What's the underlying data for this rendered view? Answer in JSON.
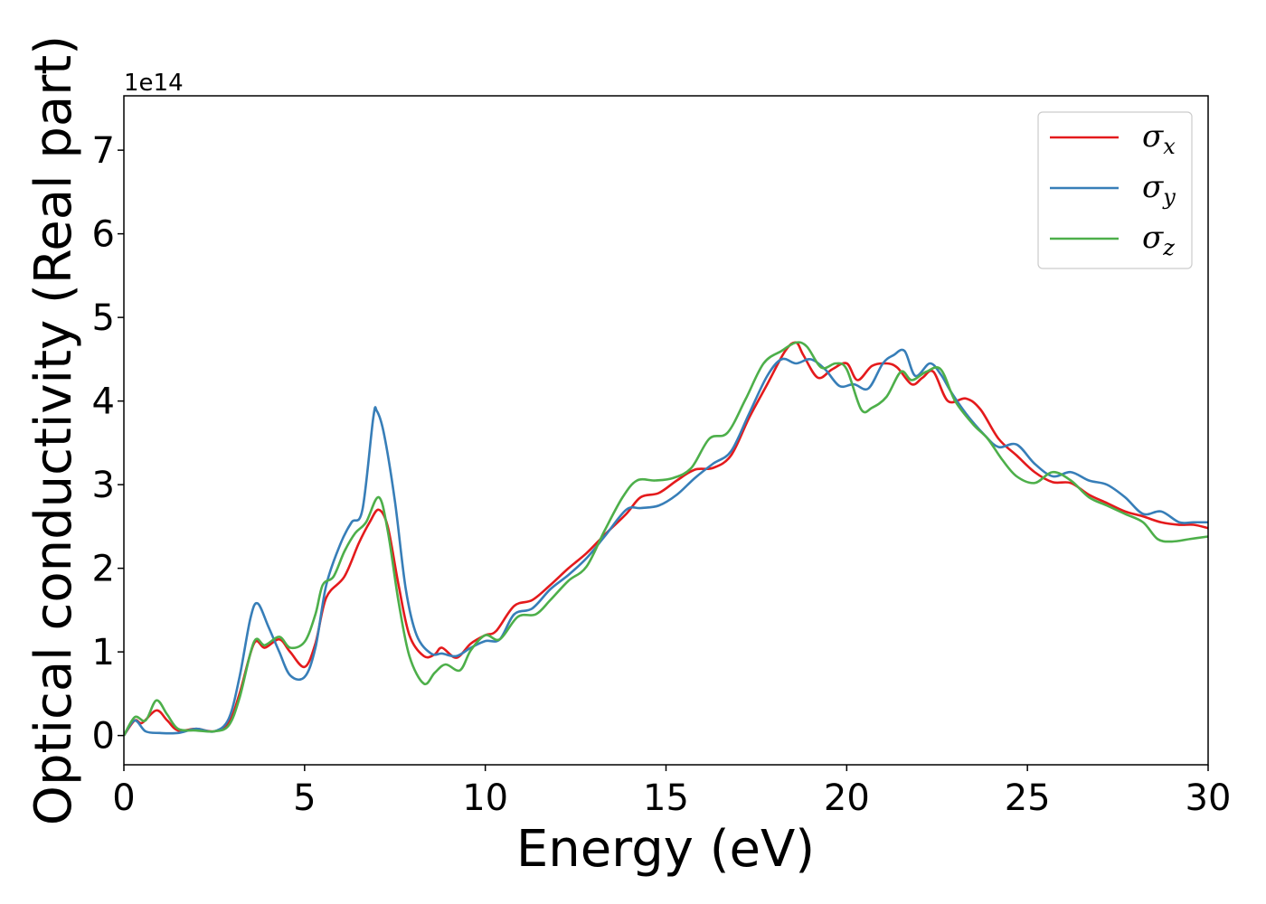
{
  "chart_data": {
    "type": "line",
    "xlabel": "Energy (eV)",
    "ylabel": "Optical conductivity (Real part)",
    "y_offset_label": "1e14",
    "xlim": [
      0,
      30
    ],
    "ylim": [
      -0.35,
      7.65
    ],
    "x_ticks": [
      0,
      5,
      10,
      15,
      20,
      25,
      30
    ],
    "x_tick_labels": [
      "0",
      "5",
      "10",
      "15",
      "20",
      "25",
      "30"
    ],
    "y_ticks": [
      0,
      1,
      2,
      3,
      4,
      5,
      6,
      7
    ],
    "y_tick_labels": [
      "0",
      "1",
      "2",
      "3",
      "4",
      "5",
      "6",
      "7"
    ],
    "grid": false,
    "legend_position": "top-right",
    "series": [
      {
        "name": "σx",
        "symbol": "σ",
        "subscript": "x",
        "color": "#e41a1c",
        "points": [
          [
            0,
            0
          ],
          [
            0.3,
            0.18
          ],
          [
            0.5,
            0.15
          ],
          [
            0.9,
            0.3
          ],
          [
            1.2,
            0.18
          ],
          [
            1.5,
            0.06
          ],
          [
            2,
            0.08
          ],
          [
            2.5,
            0.05
          ],
          [
            2.9,
            0.15
          ],
          [
            3.2,
            0.5
          ],
          [
            3.6,
            1.1
          ],
          [
            3.9,
            1.05
          ],
          [
            4.3,
            1.15
          ],
          [
            4.6,
            1.0
          ],
          [
            5,
            0.82
          ],
          [
            5.3,
            1.1
          ],
          [
            5.6,
            1.65
          ],
          [
            6.1,
            1.9
          ],
          [
            6.5,
            2.3
          ],
          [
            6.8,
            2.55
          ],
          [
            7.05,
            2.7
          ],
          [
            7.3,
            2.5
          ],
          [
            7.6,
            1.8
          ],
          [
            7.9,
            1.2
          ],
          [
            8.3,
            0.95
          ],
          [
            8.6,
            0.97
          ],
          [
            8.8,
            1.05
          ],
          [
            9.2,
            0.93
          ],
          [
            9.6,
            1.1
          ],
          [
            10,
            1.2
          ],
          [
            10.3,
            1.25
          ],
          [
            10.8,
            1.55
          ],
          [
            11.3,
            1.62
          ],
          [
            11.8,
            1.8
          ],
          [
            12.3,
            2.0
          ],
          [
            12.8,
            2.18
          ],
          [
            13.3,
            2.4
          ],
          [
            13.9,
            2.65
          ],
          [
            14.3,
            2.85
          ],
          [
            14.8,
            2.9
          ],
          [
            15.3,
            3.05
          ],
          [
            15.8,
            3.18
          ],
          [
            16.3,
            3.2
          ],
          [
            16.8,
            3.35
          ],
          [
            17.3,
            3.8
          ],
          [
            17.8,
            4.2
          ],
          [
            18.3,
            4.6
          ],
          [
            18.6,
            4.7
          ],
          [
            18.8,
            4.55
          ],
          [
            19.2,
            4.28
          ],
          [
            19.6,
            4.38
          ],
          [
            20,
            4.45
          ],
          [
            20.3,
            4.25
          ],
          [
            20.7,
            4.42
          ],
          [
            21.1,
            4.45
          ],
          [
            21.4,
            4.4
          ],
          [
            21.8,
            4.2
          ],
          [
            22.1,
            4.28
          ],
          [
            22.4,
            4.35
          ],
          [
            22.8,
            4.0
          ],
          [
            23.3,
            4.03
          ],
          [
            23.7,
            3.9
          ],
          [
            24.2,
            3.55
          ],
          [
            24.7,
            3.35
          ],
          [
            25.2,
            3.15
          ],
          [
            25.7,
            3.03
          ],
          [
            26.2,
            3.02
          ],
          [
            26.7,
            2.88
          ],
          [
            27.2,
            2.78
          ],
          [
            27.7,
            2.68
          ],
          [
            28.2,
            2.62
          ],
          [
            28.7,
            2.55
          ],
          [
            29.2,
            2.52
          ],
          [
            29.6,
            2.52
          ],
          [
            30,
            2.48
          ]
        ]
      },
      {
        "name": "σy",
        "symbol": "σ",
        "subscript": "y",
        "color": "#377eb8",
        "points": [
          [
            0,
            0
          ],
          [
            0.3,
            0.18
          ],
          [
            0.6,
            0.05
          ],
          [
            1.0,
            0.03
          ],
          [
            1.5,
            0.03
          ],
          [
            2,
            0.08
          ],
          [
            2.5,
            0.05
          ],
          [
            2.9,
            0.2
          ],
          [
            3.2,
            0.7
          ],
          [
            3.5,
            1.4
          ],
          [
            3.7,
            1.58
          ],
          [
            4.0,
            1.3
          ],
          [
            4.3,
            1.0
          ],
          [
            4.6,
            0.72
          ],
          [
            5,
            0.7
          ],
          [
            5.3,
            1.05
          ],
          [
            5.6,
            1.8
          ],
          [
            6.0,
            2.3
          ],
          [
            6.3,
            2.55
          ],
          [
            6.6,
            2.7
          ],
          [
            6.9,
            3.8
          ],
          [
            7.0,
            3.88
          ],
          [
            7.2,
            3.6
          ],
          [
            7.5,
            2.8
          ],
          [
            7.8,
            1.75
          ],
          [
            8.1,
            1.2
          ],
          [
            8.5,
            0.98
          ],
          [
            8.8,
            0.98
          ],
          [
            9.2,
            0.95
          ],
          [
            9.6,
            1.05
          ],
          [
            10,
            1.13
          ],
          [
            10.4,
            1.15
          ],
          [
            10.8,
            1.45
          ],
          [
            11.3,
            1.52
          ],
          [
            11.8,
            1.75
          ],
          [
            12.3,
            1.92
          ],
          [
            12.8,
            2.12
          ],
          [
            13.3,
            2.38
          ],
          [
            13.9,
            2.7
          ],
          [
            14.3,
            2.72
          ],
          [
            14.8,
            2.75
          ],
          [
            15.3,
            2.88
          ],
          [
            15.8,
            3.08
          ],
          [
            16.3,
            3.25
          ],
          [
            16.8,
            3.4
          ],
          [
            17.3,
            3.85
          ],
          [
            17.8,
            4.3
          ],
          [
            18.2,
            4.5
          ],
          [
            18.6,
            4.45
          ],
          [
            19.0,
            4.5
          ],
          [
            19.4,
            4.38
          ],
          [
            19.8,
            4.18
          ],
          [
            20.2,
            4.2
          ],
          [
            20.6,
            4.15
          ],
          [
            21.0,
            4.45
          ],
          [
            21.3,
            4.55
          ],
          [
            21.6,
            4.6
          ],
          [
            21.9,
            4.3
          ],
          [
            22.3,
            4.45
          ],
          [
            22.6,
            4.32
          ],
          [
            22.9,
            4.1
          ],
          [
            23.3,
            3.85
          ],
          [
            23.8,
            3.6
          ],
          [
            24.2,
            3.45
          ],
          [
            24.7,
            3.48
          ],
          [
            25.2,
            3.25
          ],
          [
            25.7,
            3.1
          ],
          [
            26.2,
            3.15
          ],
          [
            26.7,
            3.05
          ],
          [
            27.2,
            3.0
          ],
          [
            27.7,
            2.85
          ],
          [
            28.2,
            2.65
          ],
          [
            28.7,
            2.68
          ],
          [
            29.2,
            2.55
          ],
          [
            29.6,
            2.55
          ],
          [
            30,
            2.55
          ]
        ]
      },
      {
        "name": "σz",
        "symbol": "σ",
        "subscript": "z",
        "color": "#4daf4a",
        "points": [
          [
            0,
            0
          ],
          [
            0.3,
            0.22
          ],
          [
            0.6,
            0.18
          ],
          [
            0.9,
            0.42
          ],
          [
            1.2,
            0.25
          ],
          [
            1.5,
            0.08
          ],
          [
            2,
            0.06
          ],
          [
            2.5,
            0.05
          ],
          [
            2.9,
            0.12
          ],
          [
            3.2,
            0.45
          ],
          [
            3.6,
            1.12
          ],
          [
            3.9,
            1.08
          ],
          [
            4.3,
            1.18
          ],
          [
            4.6,
            1.05
          ],
          [
            5,
            1.12
          ],
          [
            5.3,
            1.45
          ],
          [
            5.5,
            1.8
          ],
          [
            5.8,
            1.9
          ],
          [
            6.1,
            2.2
          ],
          [
            6.4,
            2.42
          ],
          [
            6.7,
            2.55
          ],
          [
            7.05,
            2.85
          ],
          [
            7.3,
            2.45
          ],
          [
            7.6,
            1.6
          ],
          [
            7.9,
            0.95
          ],
          [
            8.3,
            0.62
          ],
          [
            8.6,
            0.75
          ],
          [
            8.9,
            0.85
          ],
          [
            9.3,
            0.78
          ],
          [
            9.6,
            1.02
          ],
          [
            10,
            1.2
          ],
          [
            10.4,
            1.15
          ],
          [
            10.9,
            1.42
          ],
          [
            11.4,
            1.45
          ],
          [
            11.8,
            1.62
          ],
          [
            12.3,
            1.85
          ],
          [
            12.8,
            2.02
          ],
          [
            13.3,
            2.45
          ],
          [
            13.8,
            2.85
          ],
          [
            14.2,
            3.05
          ],
          [
            14.7,
            3.05
          ],
          [
            15.2,
            3.08
          ],
          [
            15.7,
            3.2
          ],
          [
            16.2,
            3.55
          ],
          [
            16.7,
            3.62
          ],
          [
            17.2,
            4.02
          ],
          [
            17.7,
            4.45
          ],
          [
            18.2,
            4.6
          ],
          [
            18.6,
            4.7
          ],
          [
            18.9,
            4.65
          ],
          [
            19.3,
            4.4
          ],
          [
            19.7,
            4.45
          ],
          [
            20.0,
            4.38
          ],
          [
            20.4,
            3.9
          ],
          [
            20.7,
            3.92
          ],
          [
            21.1,
            4.05
          ],
          [
            21.5,
            4.35
          ],
          [
            21.8,
            4.25
          ],
          [
            22.2,
            4.35
          ],
          [
            22.6,
            4.38
          ],
          [
            23.0,
            4.0
          ],
          [
            23.5,
            3.72
          ],
          [
            23.9,
            3.55
          ],
          [
            24.3,
            3.3
          ],
          [
            24.7,
            3.1
          ],
          [
            25.2,
            3.02
          ],
          [
            25.7,
            3.15
          ],
          [
            26.2,
            3.05
          ],
          [
            26.7,
            2.85
          ],
          [
            27.2,
            2.75
          ],
          [
            27.7,
            2.65
          ],
          [
            28.2,
            2.55
          ],
          [
            28.6,
            2.35
          ],
          [
            29.0,
            2.32
          ],
          [
            29.5,
            2.35
          ],
          [
            30,
            2.38
          ]
        ]
      }
    ]
  }
}
